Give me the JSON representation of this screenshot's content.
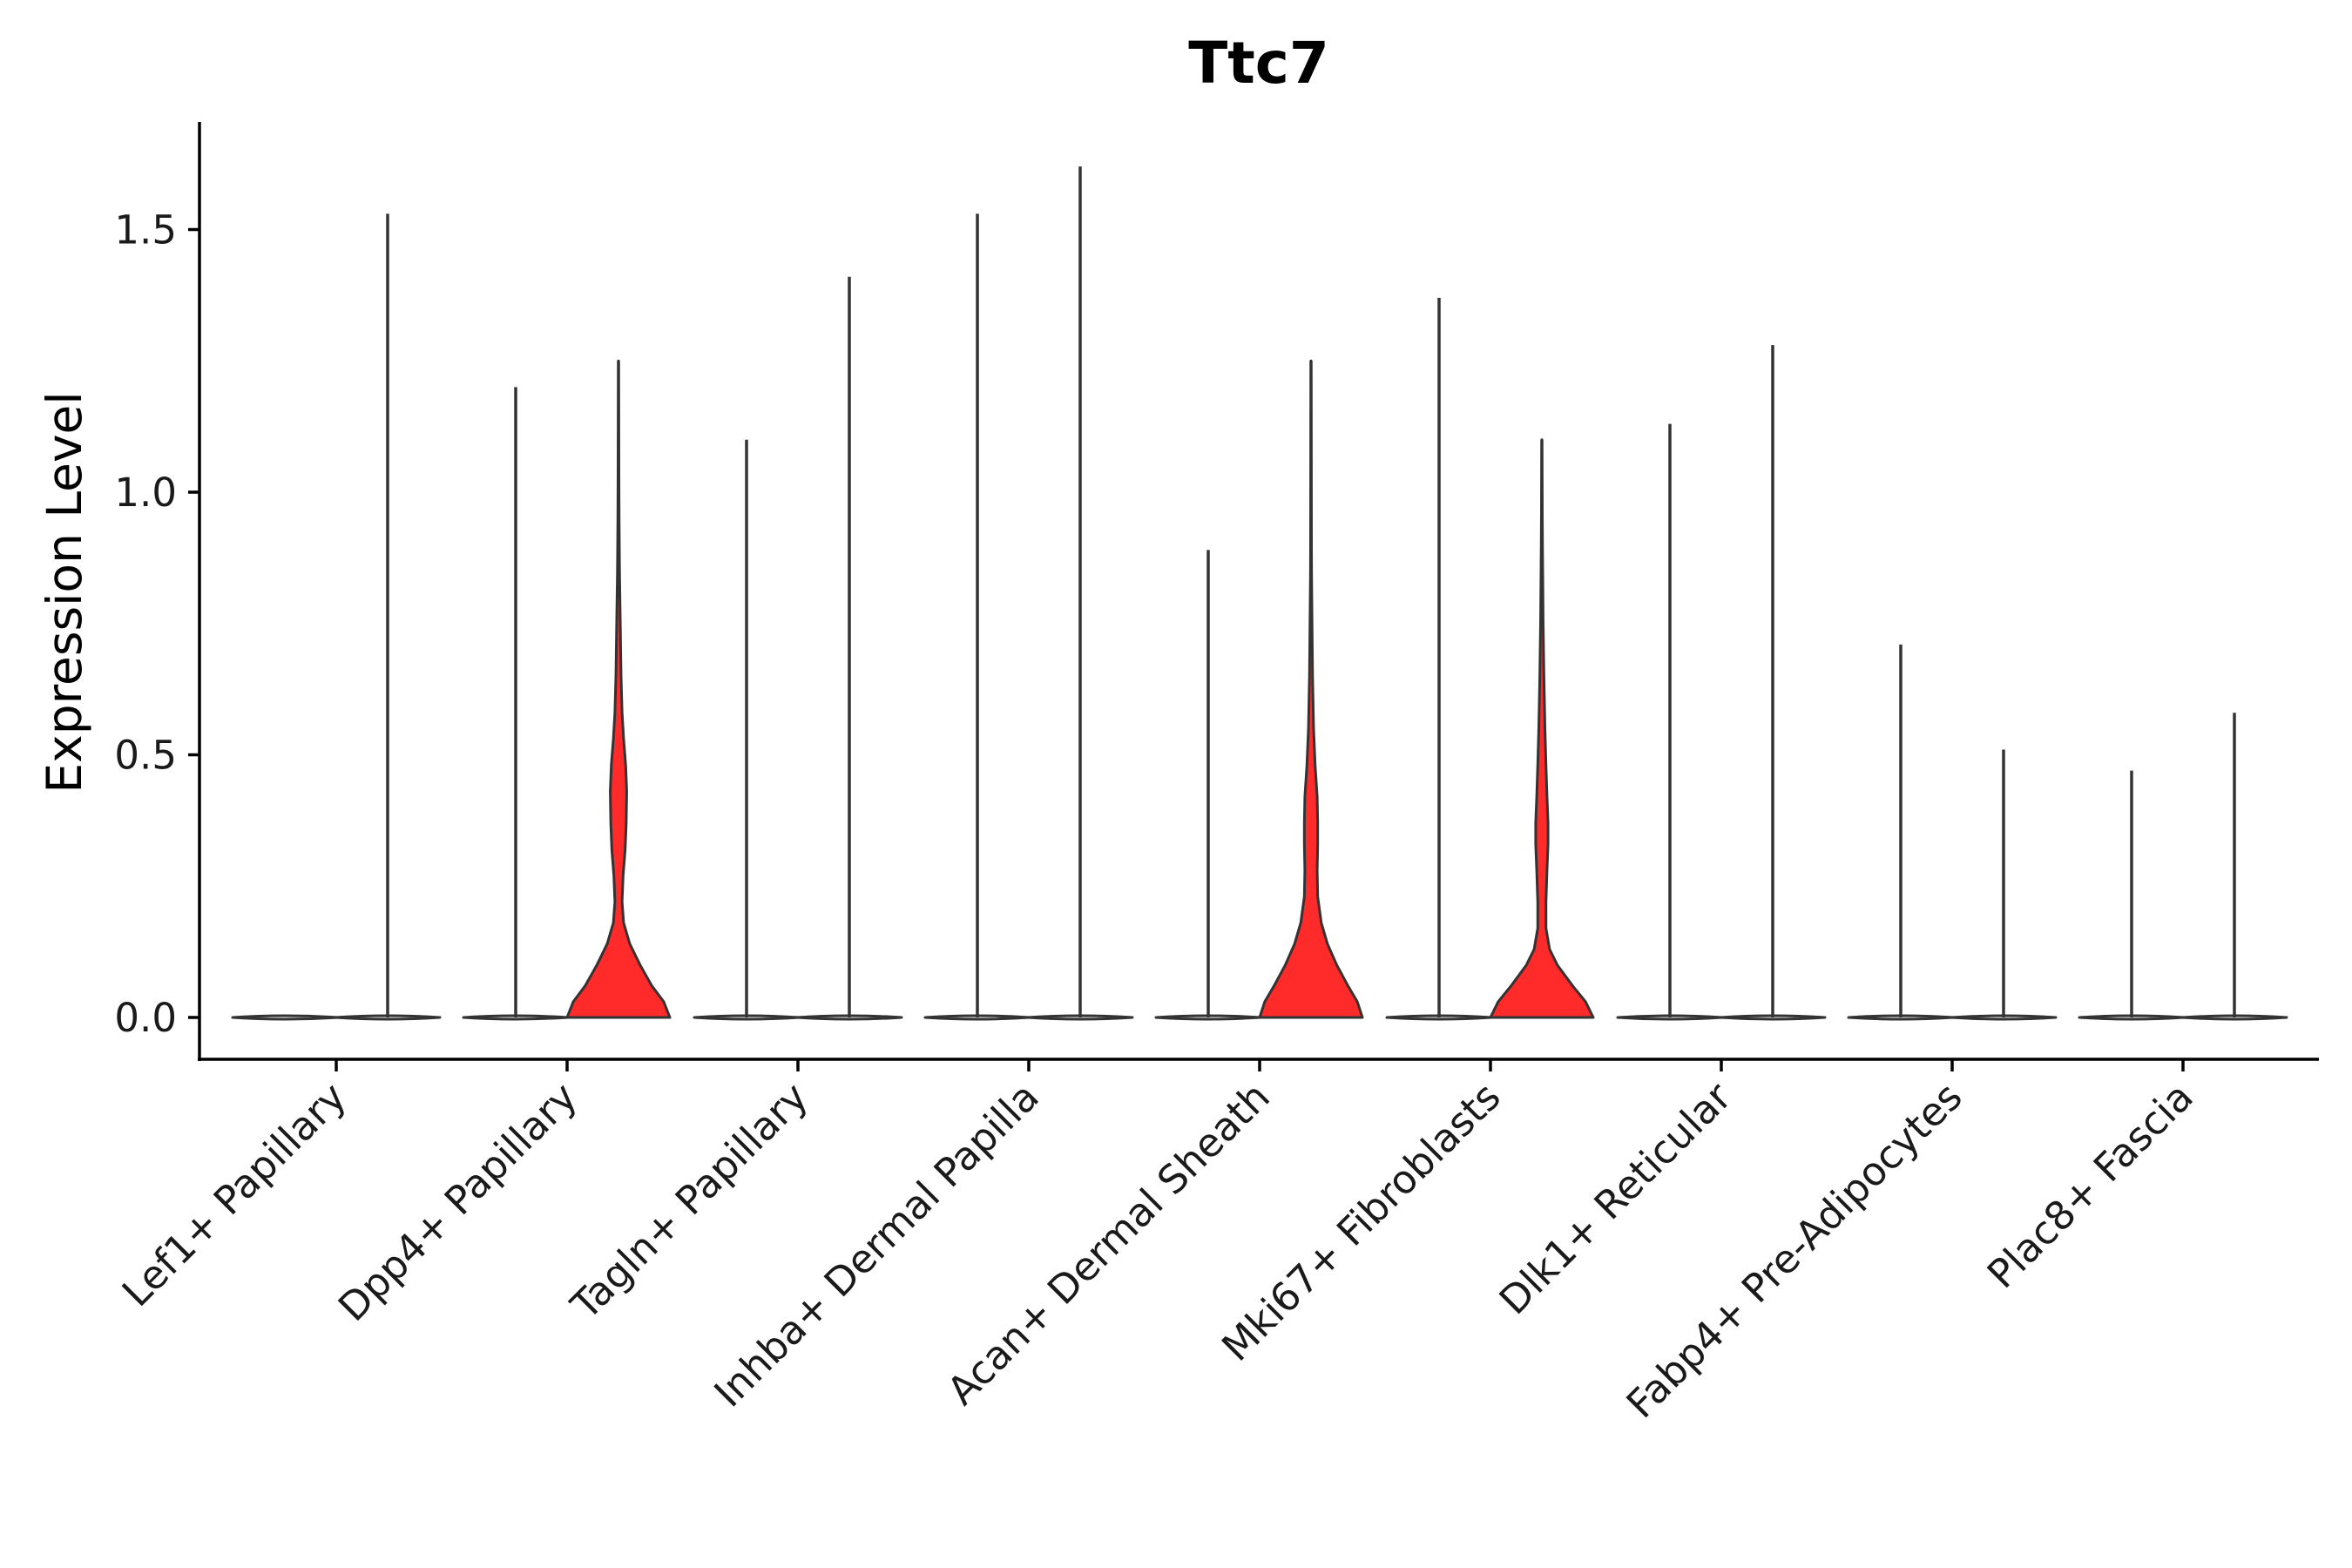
{
  "chart_data": {
    "type": "violin",
    "title": "Ttc7",
    "xlabel": "",
    "ylabel": "Expression Level",
    "ylim": [
      -0.08,
      1.7
    ],
    "yticks": [
      0.0,
      0.5,
      1.0,
      1.5
    ],
    "ytick_labels": [
      "0.0",
      "0.5",
      "1.0",
      "1.5"
    ],
    "fill_color": "#ff2a2a",
    "line_color": "#333333",
    "categories": [
      {
        "name": "Lef1+ Papillary",
        "violins": [
          {
            "max": 0.0,
            "fill": "#ffffff",
            "profile": [
              [
                0,
                0
              ]
            ]
          },
          {
            "max": 1.53,
            "fill": "#ffffff",
            "profile": [
              [
                0,
                0
              ]
            ]
          }
        ]
      },
      {
        "name": "Dpp4+ Papillary",
        "violins": [
          {
            "max": 1.2,
            "fill": "#ffffff",
            "profile": [
              [
                0,
                0
              ]
            ]
          },
          {
            "max": 1.25,
            "fill": "#ff2a2a",
            "profile": [
              [
                0.0,
                1.0
              ],
              [
                0.03,
                0.88
              ],
              [
                0.06,
                0.65
              ],
              [
                0.1,
                0.42
              ],
              [
                0.14,
                0.22
              ],
              [
                0.18,
                0.1
              ],
              [
                0.22,
                0.07
              ],
              [
                0.27,
                0.09
              ],
              [
                0.32,
                0.13
              ],
              [
                0.37,
                0.15
              ],
              [
                0.43,
                0.16
              ],
              [
                0.48,
                0.14
              ],
              [
                0.53,
                0.1
              ],
              [
                0.58,
                0.07
              ],
              [
                0.65,
                0.05
              ],
              [
                0.75,
                0.035
              ],
              [
                0.85,
                0.02
              ],
              [
                0.95,
                0.012
              ],
              [
                1.1,
                0.006
              ],
              [
                1.25,
                0.0
              ]
            ]
          }
        ]
      },
      {
        "name": "Tagln+ Papillary",
        "violins": [
          {
            "max": 1.1,
            "fill": "#ffffff",
            "profile": [
              [
                0,
                0
              ]
            ]
          },
          {
            "max": 1.41,
            "fill": "#ffffff",
            "profile": [
              [
                0,
                0
              ]
            ]
          }
        ]
      },
      {
        "name": "Inhba+ Dermal Papilla",
        "violins": [
          {
            "max": 1.53,
            "fill": "#ffffff",
            "profile": [
              [
                0,
                0
              ]
            ]
          },
          {
            "max": 1.62,
            "fill": "#ffffff",
            "profile": [
              [
                0,
                0
              ]
            ]
          }
        ]
      },
      {
        "name": "Acan+ Dermal Sheath",
        "violins": [
          {
            "max": 0.89,
            "fill": "#ffffff",
            "profile": [
              [
                0,
                0
              ]
            ]
          },
          {
            "max": 1.25,
            "fill": "#ff2a2a",
            "profile": [
              [
                0.0,
                1.0
              ],
              [
                0.03,
                0.9
              ],
              [
                0.06,
                0.72
              ],
              [
                0.1,
                0.5
              ],
              [
                0.14,
                0.32
              ],
              [
                0.18,
                0.2
              ],
              [
                0.23,
                0.13
              ],
              [
                0.28,
                0.12
              ],
              [
                0.33,
                0.13
              ],
              [
                0.37,
                0.13
              ],
              [
                0.42,
                0.12
              ],
              [
                0.48,
                0.08
              ],
              [
                0.55,
                0.05
              ],
              [
                0.65,
                0.03
              ],
              [
                0.75,
                0.02
              ],
              [
                0.85,
                0.01
              ],
              [
                1.0,
                0.006
              ],
              [
                1.25,
                0.0
              ]
            ]
          }
        ]
      },
      {
        "name": "Mki67+ Fibroblasts",
        "violins": [
          {
            "max": 1.37,
            "fill": "#ffffff",
            "profile": [
              [
                0,
                0
              ]
            ]
          },
          {
            "max": 1.1,
            "fill": "#ff2a2a",
            "profile": [
              [
                0.0,
                1.0
              ],
              [
                0.03,
                0.85
              ],
              [
                0.06,
                0.6
              ],
              [
                0.1,
                0.3
              ],
              [
                0.13,
                0.15
              ],
              [
                0.17,
                0.08
              ],
              [
                0.22,
                0.08
              ],
              [
                0.28,
                0.1
              ],
              [
                0.33,
                0.12
              ],
              [
                0.37,
                0.12
              ],
              [
                0.42,
                0.1
              ],
              [
                0.48,
                0.08
              ],
              [
                0.55,
                0.06
              ],
              [
                0.65,
                0.04
              ],
              [
                0.75,
                0.025
              ],
              [
                0.9,
                0.012
              ],
              [
                1.1,
                0.0
              ]
            ]
          }
        ]
      },
      {
        "name": "Dlk1+ Reticular",
        "violins": [
          {
            "max": 1.13,
            "fill": "#ffffff",
            "profile": [
              [
                0,
                0
              ]
            ]
          },
          {
            "max": 1.28,
            "fill": "#ffffff",
            "profile": [
              [
                0,
                0
              ]
            ]
          }
        ]
      },
      {
        "name": "Fabp4+ Pre-Adipocytes",
        "violins": [
          {
            "max": 0.71,
            "fill": "#ffffff",
            "profile": [
              [
                0,
                0
              ]
            ]
          },
          {
            "max": 0.51,
            "fill": "#ffffff",
            "profile": [
              [
                0,
                0
              ]
            ]
          }
        ]
      },
      {
        "name": "Plac8+ Fascia",
        "violins": [
          {
            "max": 0.47,
            "fill": "#ffffff",
            "profile": [
              [
                0,
                0
              ]
            ]
          },
          {
            "max": 0.58,
            "fill": "#ffffff",
            "profile": [
              [
                0,
                0
              ]
            ]
          }
        ]
      }
    ]
  }
}
